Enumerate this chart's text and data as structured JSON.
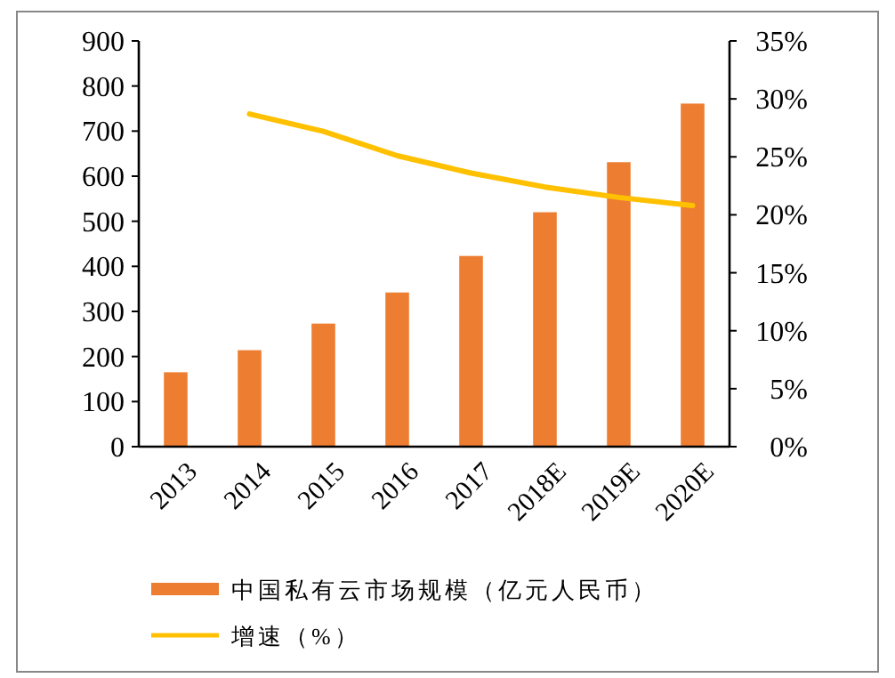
{
  "chart_data": {
    "type": "bar",
    "categories": [
      "2013",
      "2014",
      "2015",
      "2016",
      "2017",
      "2018E",
      "2019E",
      "2020E"
    ],
    "series": [
      {
        "name": "中国私有云市场规模（亿元人民币）",
        "color": "#ed7d31",
        "values": [
          165,
          214,
          273,
          342,
          423,
          520,
          631,
          761
        ]
      },
      {
        "name": "增速（%）",
        "type": "line",
        "axis": "y2",
        "color": "#ffc000",
        "values": [
          null,
          28.7,
          27.2,
          25.1,
          23.6,
          22.4,
          21.5,
          20.8
        ]
      }
    ],
    "ylim": [
      0,
      900
    ],
    "yticks": [
      0,
      100,
      200,
      300,
      400,
      500,
      600,
      700,
      800,
      900
    ],
    "y2lim": [
      0,
      35
    ],
    "y2ticks": [
      {
        "value": 0,
        "label": "0%"
      },
      {
        "value": 5,
        "label": "5%"
      },
      {
        "value": 10,
        "label": "10%"
      },
      {
        "value": 15,
        "label": "15%"
      },
      {
        "value": 20,
        "label": "20%"
      },
      {
        "value": 25,
        "label": "25%"
      },
      {
        "value": 30,
        "label": "30%"
      },
      {
        "value": 35,
        "label": "35%"
      }
    ],
    "grid": false,
    "legend": "bottom",
    "marker": "none",
    "line_style": "solid"
  }
}
